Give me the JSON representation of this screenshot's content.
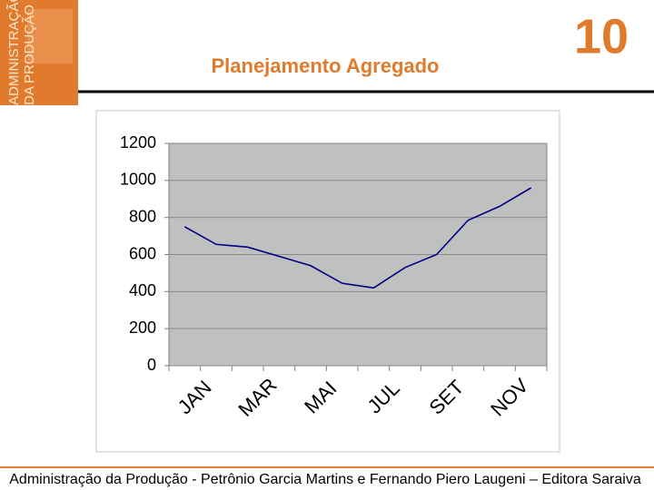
{
  "header": {
    "logo_lines": [
      "ADMINISTRAÇÃO",
      "DA PRODUÇÃO"
    ],
    "title": "Planejamento Agregado",
    "page_number": "10"
  },
  "footer": "Administração da Produção - Petrônio Garcia Martins e Fernando Piero Laugeni – Editora Saraiva",
  "chart_data": {
    "type": "line",
    "categories": [
      "JAN",
      null,
      "MAR",
      null,
      "MAI",
      null,
      "JUL",
      null,
      "SET",
      null,
      "NOV",
      null
    ],
    "series": [
      {
        "color": "#000080",
        "values": [
          750,
          655,
          640,
          590,
          540,
          445,
          420,
          530,
          600,
          785,
          860,
          960
        ]
      }
    ],
    "ylim": [
      0,
      1200
    ],
    "yticks": [
      0,
      200,
      400,
      600,
      800,
      1000,
      1200
    ],
    "grid": true
  }
}
